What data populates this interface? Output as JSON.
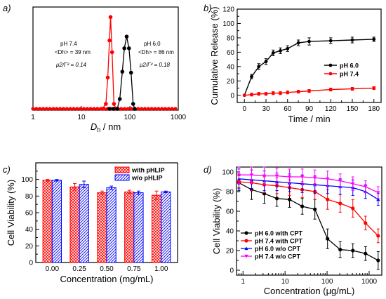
{
  "chart_data": [
    {
      "panel": "a)",
      "type": "scatter",
      "xscale": "log",
      "xlim": [
        1,
        1000
      ],
      "ylim": [
        0,
        1
      ],
      "y_ticks_shown": false,
      "xlabel_main": "D",
      "xlabel_sub": "h",
      "xlabel_rest": " / nm",
      "xticks": [
        1,
        10,
        100,
        1000
      ],
      "xtick_labels": [
        "1",
        "10",
        "100",
        "1000"
      ],
      "baseline_color": "#ff0000",
      "series": [
        {
          "color": "#ff0000",
          "points": [
            [
              27,
              0.0
            ],
            [
              32,
              0.05
            ],
            [
              35,
              0.32
            ],
            [
              38,
              0.7
            ],
            [
              40,
              0.94
            ],
            [
              43,
              0.58
            ],
            [
              47,
              0.05
            ],
            [
              52,
              0.0
            ]
          ]
        },
        {
          "color": "#000000",
          "points": [
            [
              38,
              0.0
            ],
            [
              46,
              0.0
            ],
            [
              55,
              0.0
            ],
            [
              62,
              0.1
            ],
            [
              70,
              0.38
            ],
            [
              77,
              0.62
            ],
            [
              86,
              0.74
            ],
            [
              96,
              0.62
            ],
            [
              106,
              0.37
            ],
            [
              117,
              0.05
            ],
            [
              126,
              0.0
            ]
          ]
        }
      ],
      "annotations": [
        {
          "title": "pH 7.4",
          "dh_label": "<Dh> = 39 nm",
          "pdi_label": "μ2/Γ² = 0.14"
        },
        {
          "title": "pH 6.0",
          "dh_label": "<Dh> = 86 nm",
          "pdi_label": "μ2/Γ² = 0.18"
        }
      ]
    },
    {
      "panel": "b)",
      "type": "line",
      "xlabel": "Time / min",
      "ylabel": "Cumulative Release (%)",
      "xlim": [
        -10,
        190
      ],
      "ylim": [
        -10,
        120
      ],
      "xticks": [
        0,
        30,
        60,
        90,
        120,
        150,
        180
      ],
      "yticks": [
        0,
        20,
        40,
        60,
        80,
        100,
        120
      ],
      "legend_position": "right",
      "series": [
        {
          "name": "pH 6.0",
          "color": "#000000",
          "x": [
            0,
            10,
            20,
            30,
            40,
            50,
            60,
            75,
            90,
            120,
            150,
            180
          ],
          "y": [
            0,
            26,
            40,
            47,
            59,
            62,
            65,
            73,
            75,
            76,
            77,
            78
          ],
          "err": [
            0.5,
            3,
            4,
            4,
            4,
            4,
            4,
            4,
            5,
            4,
            4,
            3
          ]
        },
        {
          "name": "pH 7.4",
          "color": "#ff0000",
          "x": [
            0,
            10,
            20,
            30,
            40,
            50,
            60,
            75,
            90,
            120,
            150,
            180
          ],
          "y": [
            0,
            1,
            2,
            2,
            3,
            3,
            4,
            5,
            6,
            8,
            9,
            10
          ],
          "err": [
            0.5,
            2,
            2,
            2,
            2,
            2,
            2,
            2,
            2,
            2,
            2,
            2
          ]
        }
      ]
    },
    {
      "panel": "c)",
      "type": "bar",
      "xlabel": "Concentration (mg/mL)",
      "ylabel": "Cell Viability (%)",
      "categories": [
        "0.00",
        "0.25",
        "0.50",
        "0.75",
        "1.00"
      ],
      "ylim": [
        0,
        120
      ],
      "yticks": [
        0,
        20,
        40,
        60,
        80,
        100
      ],
      "legend_position": "top-right",
      "series": [
        {
          "name": "with pHLIP",
          "color": "#ff0000",
          "values": [
            99,
            91,
            84,
            85,
            81
          ],
          "err": [
            1,
            4,
            2,
            2,
            5
          ]
        },
        {
          "name": "w/o pHLIP",
          "color": "#0000ff",
          "values": [
            99,
            94,
            90,
            84,
            85
          ],
          "err": [
            1,
            4,
            2,
            2,
            1
          ]
        }
      ]
    },
    {
      "panel": "d)",
      "type": "line",
      "xscale": "log",
      "xlabel": "Concentration (μg/mL)",
      "ylabel": "Cell Viability (%)",
      "xlim": [
        0.7,
        2000
      ],
      "ylim": [
        -5,
        105
      ],
      "xticks": [
        1,
        10,
        100,
        1000
      ],
      "xtick_labels": [
        "1",
        "10",
        "100",
        "1000"
      ],
      "yticks": [
        0,
        20,
        40,
        60,
        80,
        100
      ],
      "legend_position": "bottom-left",
      "series": [
        {
          "name": "pH 6.0 with CPT",
          "color": "#000000",
          "marker": "circle",
          "x": [
            0.8,
            1.6,
            3.2,
            6.4,
            12.8,
            25.6,
            51.2,
            102.4,
            204.8,
            409.6,
            819.2,
            1638.4
          ],
          "y": [
            89,
            82,
            78,
            73,
            72,
            65,
            62,
            32,
            21,
            20,
            17,
            10
          ],
          "err": [
            8,
            10,
            10,
            8,
            8,
            8,
            10,
            10,
            8,
            7,
            7,
            9
          ]
        },
        {
          "name": "pH 7.4 with CPT",
          "color": "#ff0000",
          "marker": "circle",
          "x": [
            0.8,
            1.6,
            3.2,
            6.4,
            12.8,
            25.6,
            51.2,
            102.4,
            204.8,
            409.6,
            819.2,
            1638.4
          ],
          "y": [
            90,
            89,
            87,
            86,
            84,
            82,
            80,
            72,
            68,
            63,
            48,
            35
          ],
          "err": [
            6,
            8,
            8,
            8,
            8,
            8,
            8,
            10,
            9,
            9,
            7,
            7
          ]
        },
        {
          "name": "pH 6.0 w/o CPT",
          "color": "#0000ff",
          "marker": "triangle-up",
          "x": [
            0.8,
            1.6,
            3.2,
            6.4,
            12.8,
            25.6,
            51.2,
            102.4,
            204.8,
            409.6,
            819.2,
            1638.4
          ],
          "y": [
            93,
            92,
            91,
            90,
            89,
            88,
            87,
            86,
            85,
            84,
            80,
            72
          ],
          "err": [
            10,
            10,
            10,
            9,
            9,
            9,
            9,
            8,
            8,
            8,
            7,
            6
          ]
        },
        {
          "name": "pH 7.4 w/o CPT",
          "color": "#ff00ff",
          "marker": "triangle-down",
          "x": [
            0.8,
            1.6,
            3.2,
            6.4,
            12.8,
            25.6,
            51.2,
            102.4,
            204.8,
            409.6,
            819.2,
            1638.4
          ],
          "y": [
            97,
            97,
            96,
            96,
            95,
            95,
            94,
            93,
            91,
            88,
            85,
            79
          ],
          "err": [
            9,
            9,
            9,
            8,
            8,
            8,
            8,
            8,
            7,
            7,
            6,
            6
          ]
        }
      ]
    }
  ]
}
